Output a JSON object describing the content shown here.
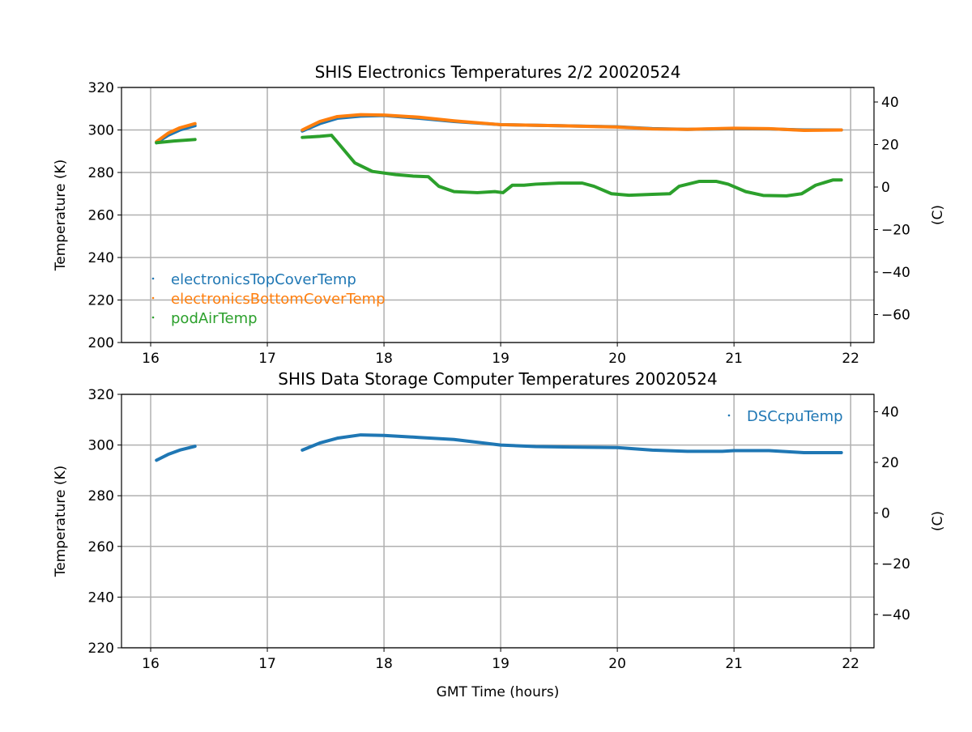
{
  "chart_data": [
    {
      "type": "scatter",
      "title": "SHIS Electronics Temperatures 2/2 20020524",
      "xlabel": "",
      "ylabel": "Temperature (K)",
      "ylabel_right": "(C)",
      "xlim": [
        15.75,
        22.2
      ],
      "ylim": [
        200,
        320
      ],
      "xticks": [
        16,
        17,
        18,
        19,
        20,
        21,
        22
      ],
      "yticks": [
        200,
        220,
        240,
        260,
        280,
        300,
        320
      ],
      "yticks_right": [
        40,
        20,
        0,
        -20,
        -40,
        -60
      ],
      "grid": true,
      "legend": "lower-left",
      "series": [
        {
          "name": "electronicsTopCoverTemp",
          "color": "#1f77b4",
          "segments": [
            [
              [
                16.05,
                294
              ],
              [
                16.15,
                297.5
              ],
              [
                16.25,
                300
              ],
              [
                16.38,
                302
              ]
            ],
            [
              [
                17.3,
                299.5
              ],
              [
                17.45,
                303
              ],
              [
                17.6,
                305.5
              ],
              [
                17.8,
                306.5
              ],
              [
                18.0,
                306.8
              ],
              [
                18.3,
                305.5
              ],
              [
                18.6,
                304
              ],
              [
                19.0,
                302.5
              ],
              [
                19.5,
                302
              ],
              [
                20.0,
                301.5
              ],
              [
                20.3,
                300.6
              ],
              [
                20.6,
                300.3
              ],
              [
                21.0,
                300.6
              ],
              [
                21.3,
                300.5
              ],
              [
                21.6,
                300
              ],
              [
                21.92,
                300
              ]
            ]
          ]
        },
        {
          "name": "electronicsBottomCoverTemp",
          "color": "#ff7f0e",
          "segments": [
            [
              [
                16.05,
                294.5
              ],
              [
                16.15,
                298.5
              ],
              [
                16.25,
                301
              ],
              [
                16.38,
                303
              ]
            ],
            [
              [
                17.3,
                300
              ],
              [
                17.45,
                304
              ],
              [
                17.6,
                306.3
              ],
              [
                17.8,
                307.2
              ],
              [
                18.0,
                307
              ],
              [
                18.3,
                306
              ],
              [
                18.6,
                304.3
              ],
              [
                19.0,
                302.5
              ],
              [
                19.5,
                302
              ],
              [
                20.0,
                301.4
              ],
              [
                20.3,
                300.5
              ],
              [
                20.6,
                300.3
              ],
              [
                21.0,
                300.8
              ],
              [
                21.3,
                300.6
              ],
              [
                21.6,
                299.8
              ],
              [
                21.92,
                300
              ]
            ]
          ]
        },
        {
          "name": "podAirTemp",
          "color": "#2ca02c",
          "segments": [
            [
              [
                16.05,
                294
              ],
              [
                16.2,
                294.8
              ],
              [
                16.38,
                295.5
              ]
            ],
            [
              [
                17.3,
                296.5
              ],
              [
                17.45,
                297
              ],
              [
                17.55,
                297.5
              ],
              [
                17.62,
                293
              ],
              [
                17.75,
                284.5
              ],
              [
                17.9,
                280.5
              ],
              [
                18.1,
                279
              ],
              [
                18.25,
                278.3
              ],
              [
                18.38,
                278
              ],
              [
                18.47,
                273.5
              ],
              [
                18.6,
                271
              ],
              [
                18.8,
                270.5
              ],
              [
                18.95,
                271
              ],
              [
                19.02,
                270.5
              ],
              [
                19.1,
                274
              ],
              [
                19.2,
                274
              ],
              [
                19.3,
                274.5
              ],
              [
                19.5,
                275
              ],
              [
                19.7,
                275
              ],
              [
                19.8,
                273.5
              ],
              [
                19.95,
                270
              ],
              [
                20.1,
                269.3
              ],
              [
                20.3,
                269.7
              ],
              [
                20.45,
                270
              ],
              [
                20.53,
                273.5
              ],
              [
                20.7,
                275.8
              ],
              [
                20.85,
                275.8
              ],
              [
                20.95,
                274.5
              ],
              [
                21.1,
                271
              ],
              [
                21.25,
                269.2
              ],
              [
                21.45,
                269
              ],
              [
                21.58,
                270
              ],
              [
                21.7,
                274
              ],
              [
                21.85,
                276.5
              ],
              [
                21.92,
                276.5
              ]
            ]
          ]
        }
      ]
    },
    {
      "type": "scatter",
      "title": "SHIS Data Storage Computer Temperatures 20020524",
      "xlabel": "GMT Time (hours)",
      "ylabel": "Temperature (K)",
      "ylabel_right": "(C)",
      "xlim": [
        15.75,
        22.2
      ],
      "ylim": [
        220,
        320
      ],
      "xticks": [
        16,
        17,
        18,
        19,
        20,
        21,
        22
      ],
      "yticks": [
        220,
        240,
        260,
        280,
        300,
        320
      ],
      "yticks_right": [
        40,
        20,
        0,
        -20,
        -40
      ],
      "grid": true,
      "legend": "upper-right",
      "series": [
        {
          "name": "DSCcpuTemp",
          "color": "#1f77b4",
          "segments": [
            [
              [
                16.05,
                294
              ],
              [
                16.15,
                296.3
              ],
              [
                16.25,
                298
              ],
              [
                16.38,
                299.5
              ]
            ],
            [
              [
                17.3,
                298
              ],
              [
                17.45,
                300.8
              ],
              [
                17.6,
                302.7
              ],
              [
                17.8,
                304
              ],
              [
                18.0,
                303.8
              ],
              [
                18.3,
                303
              ],
              [
                18.6,
                302.2
              ],
              [
                19.0,
                300
              ],
              [
                19.3,
                299.4
              ],
              [
                19.6,
                299.2
              ],
              [
                20.0,
                299
              ],
              [
                20.3,
                298
              ],
              [
                20.6,
                297.5
              ],
              [
                20.9,
                297.5
              ],
              [
                21.0,
                297.8
              ],
              [
                21.3,
                297.8
              ],
              [
                21.6,
                297
              ],
              [
                21.92,
                297
              ]
            ]
          ]
        }
      ]
    }
  ]
}
